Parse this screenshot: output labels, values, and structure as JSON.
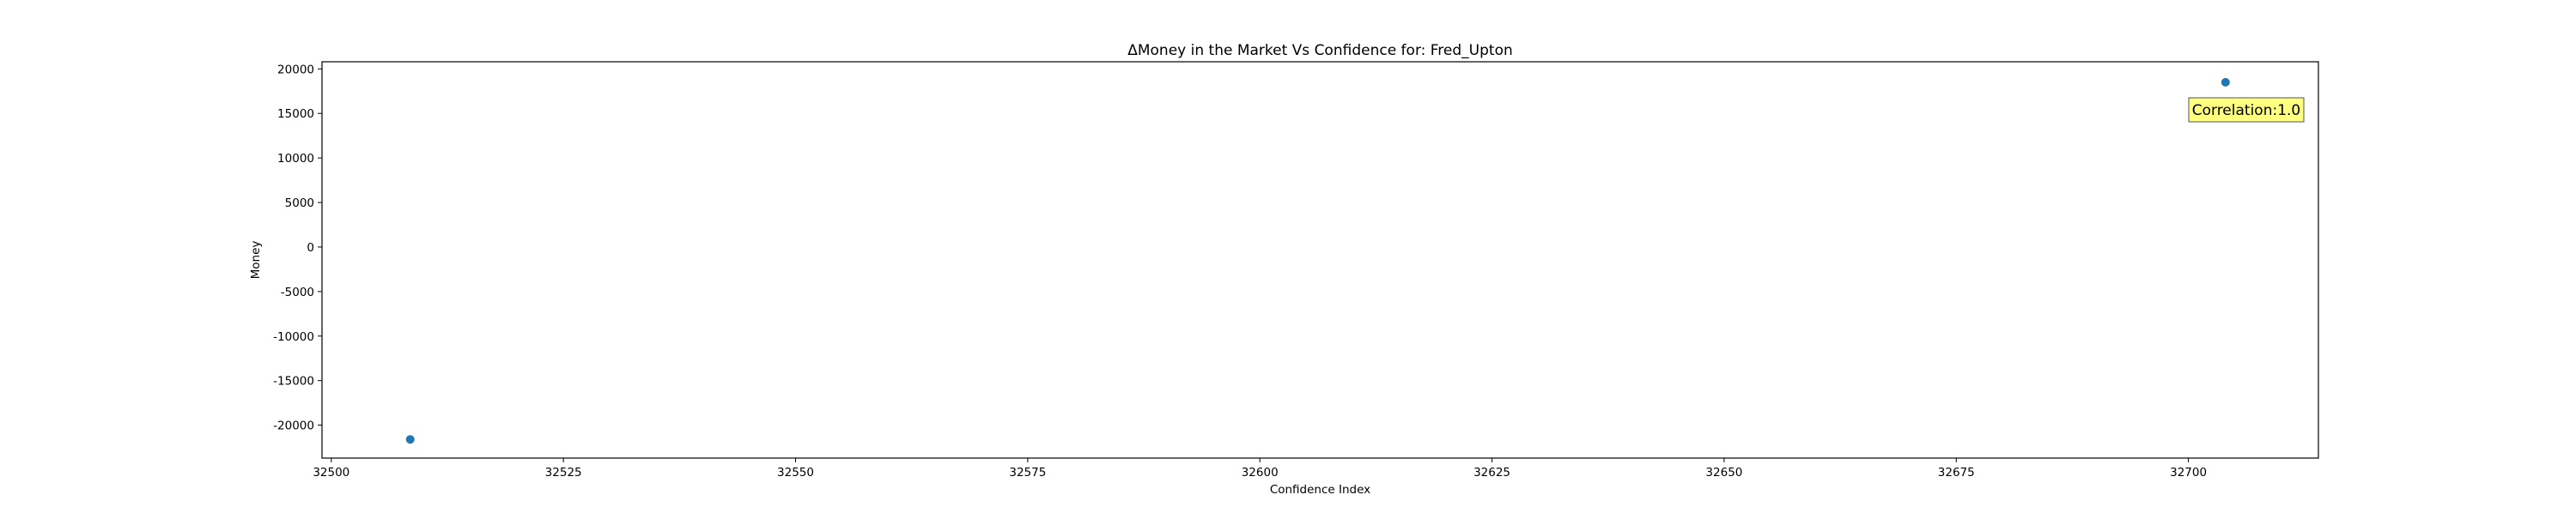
{
  "chart_data": {
    "type": "scatter",
    "title": "ΔMoney in the Market Vs Confidence for: Fred_Upton",
    "xlabel": "Confidence Index",
    "ylabel": "Money",
    "xlim": [
      32499,
      32714
    ],
    "ylim": [
      -23700,
      20800
    ],
    "xticks": [
      32500,
      32525,
      32550,
      32575,
      32600,
      32625,
      32650,
      32675,
      32700
    ],
    "yticks": [
      -20000,
      -15000,
      -10000,
      -5000,
      0,
      5000,
      10000,
      15000,
      20000
    ],
    "grid": false,
    "points": [
      {
        "x": 32508.5,
        "y": -21600
      },
      {
        "x": 32704,
        "y": 18500
      }
    ],
    "annotation": {
      "text": "Correlation:1.0",
      "background": "#ffff80",
      "placement": "top-right"
    },
    "colors": {
      "marker": "#1f77b4",
      "axes": "#000000",
      "background": "#ffffff"
    }
  }
}
